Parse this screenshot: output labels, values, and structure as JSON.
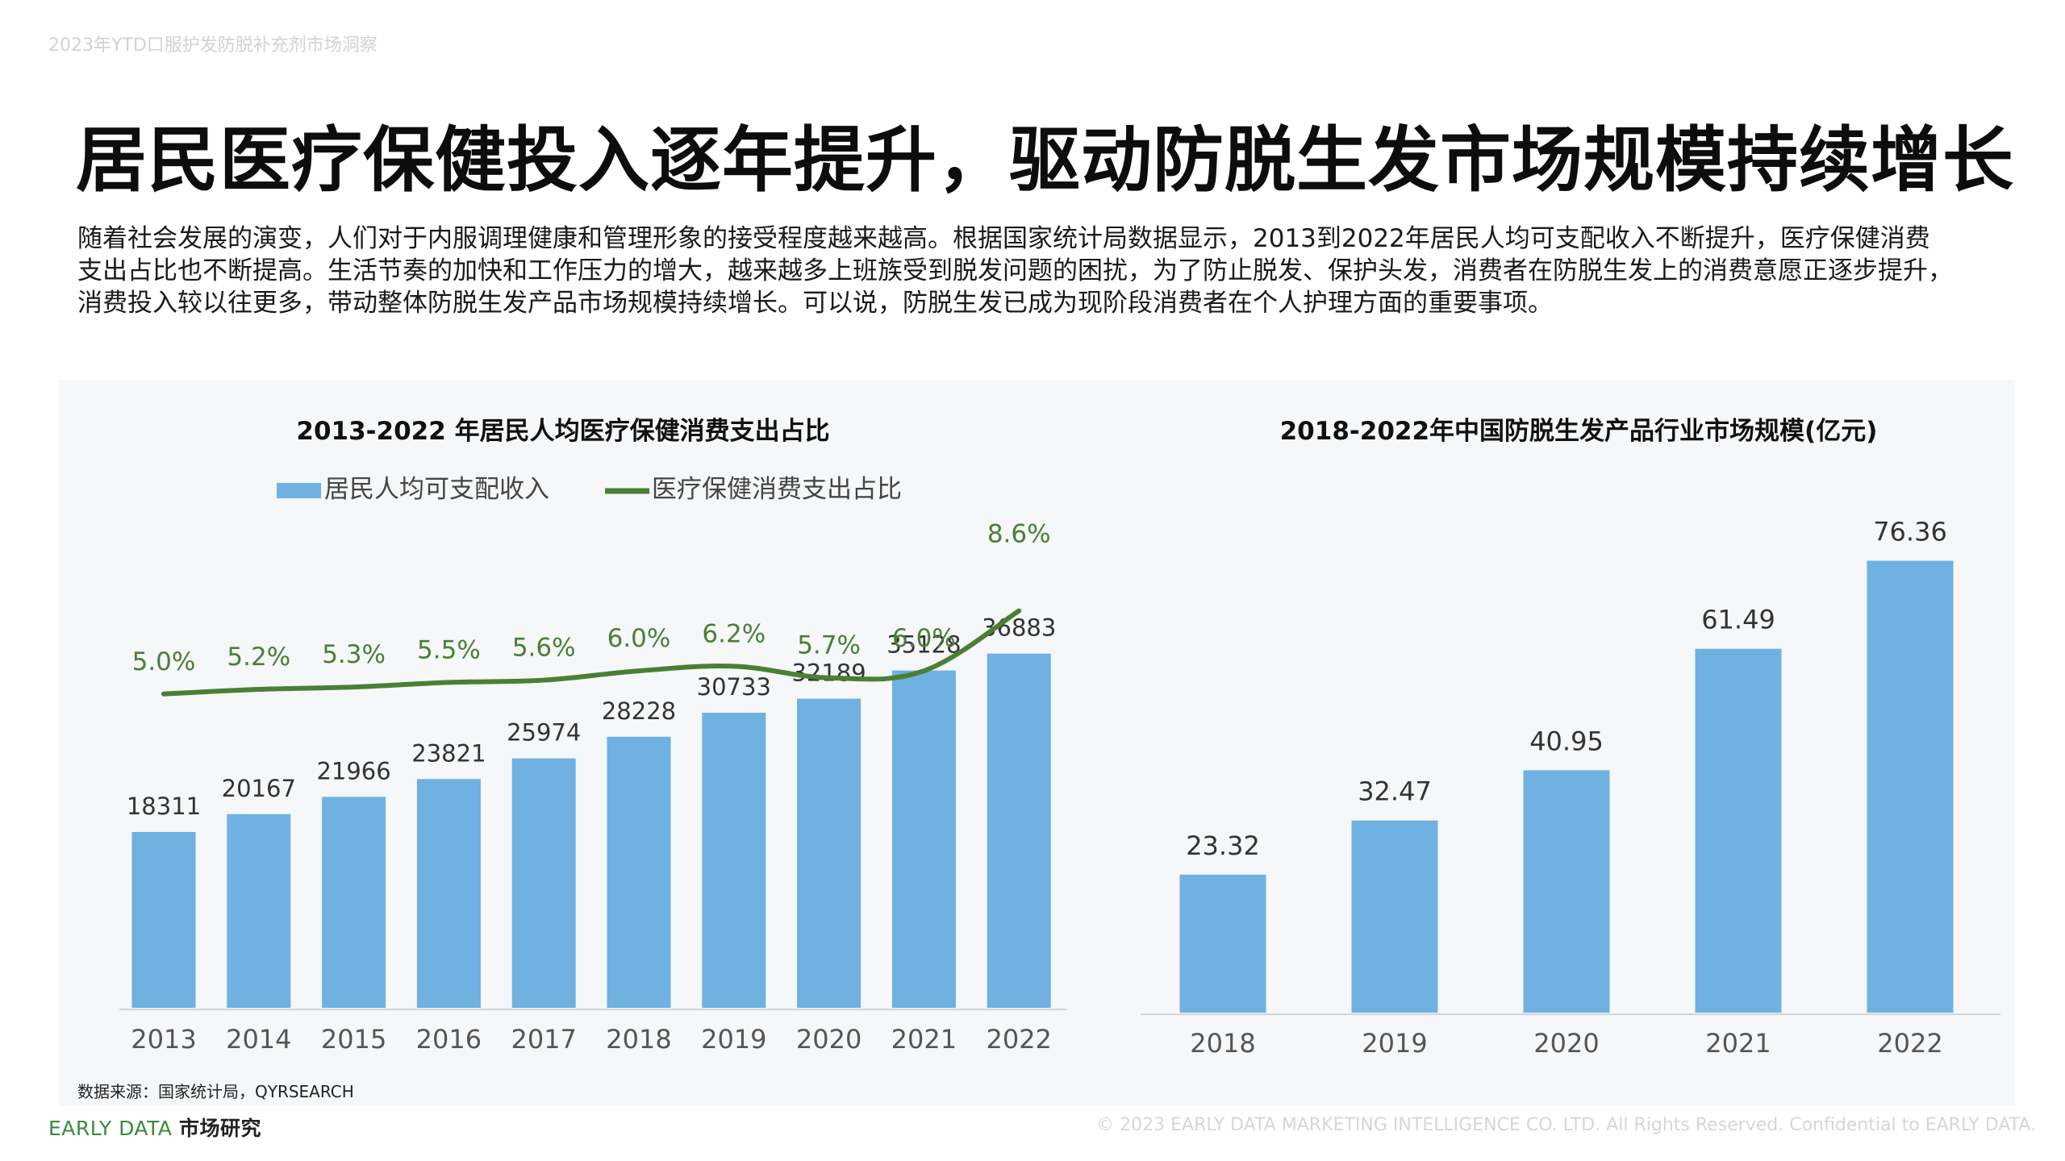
{
  "header": {
    "small_title": "2023年YTD口服护发防脱补充剂市场洞察"
  },
  "title": "居民医疗保健投入逐年提升，驱动防脱生发市场规模持续增长",
  "intro_lines": [
    "随着社会发展的演变，人们对于内服调理健康和管理形象的接受程度越来越高。根据国家统计局数据显示，2013到2022年居民人均可支配收入不断提升，医疗保健消费",
    "支出占比也不断提高。生活节奏的加快和工作压力的增大，越来越多上班族受到脱发问题的困扰，为了防止脱发、保护头发，消费者在防脱生发上的消费意愿正逐步提升，",
    "消费投入较以往更多，带动整体防脱生发产品市场规模持续增长。可以说，防脱生发已成为现阶段消费者在个人护理方面的重要事项。"
  ],
  "source": "数据来源：国家统计局，QYRSEARCH",
  "footer": {
    "brand_prefix": "EARLY DATA ",
    "brand_suffix": "市场研究",
    "copyright": "© 2023 EARLY DATA MARKETING INTELLIGENCE CO. LTD. All Rights Reserved. Confidential to EARLY DATA."
  },
  "colors": {
    "bar": "#6fb1e0",
    "line": "#4a7f35",
    "label_line": "#4a7f35",
    "panel": "#f5f7f9"
  },
  "chart_data": [
    {
      "type": "bar+line",
      "title": "2013-2022 年居民人均医疗保健消费支出占比",
      "categories": [
        "2013",
        "2014",
        "2015",
        "2016",
        "2017",
        "2018",
        "2019",
        "2020",
        "2021",
        "2022"
      ],
      "series": [
        {
          "name": "居民人均可支配收入",
          "type": "bar",
          "values": [
            18311,
            20167,
            21966,
            23821,
            25974,
            28228,
            30733,
            32189,
            35128,
            36883
          ],
          "labels": [
            "18311",
            "20167",
            "21966",
            "23821",
            "25974",
            "28228",
            "30733",
            "32189",
            "35128",
            "36883"
          ]
        },
        {
          "name": "医疗保健消费支出占比",
          "type": "line",
          "values": [
            5.0,
            5.2,
            5.3,
            5.5,
            5.6,
            6.0,
            6.2,
            5.7,
            6.0,
            8.6
          ],
          "labels": [
            "5.0%",
            "5.2%",
            "5.3%",
            "5.5%",
            "5.6%",
            "6.0%",
            "6.2%",
            "5.7%",
            "6.0%",
            "8.6%"
          ]
        }
      ],
      "legend_position": "top",
      "grid": false
    },
    {
      "type": "bar",
      "title": "2018-2022年中国防脱生发产品行业市场规模(亿元)",
      "categories": [
        "2018",
        "2019",
        "2020",
        "2021",
        "2022"
      ],
      "values": [
        23.32,
        32.47,
        40.95,
        61.49,
        76.36
      ],
      "labels": [
        "23.32",
        "32.47",
        "40.95",
        "61.49",
        "76.36"
      ],
      "grid": false
    }
  ]
}
